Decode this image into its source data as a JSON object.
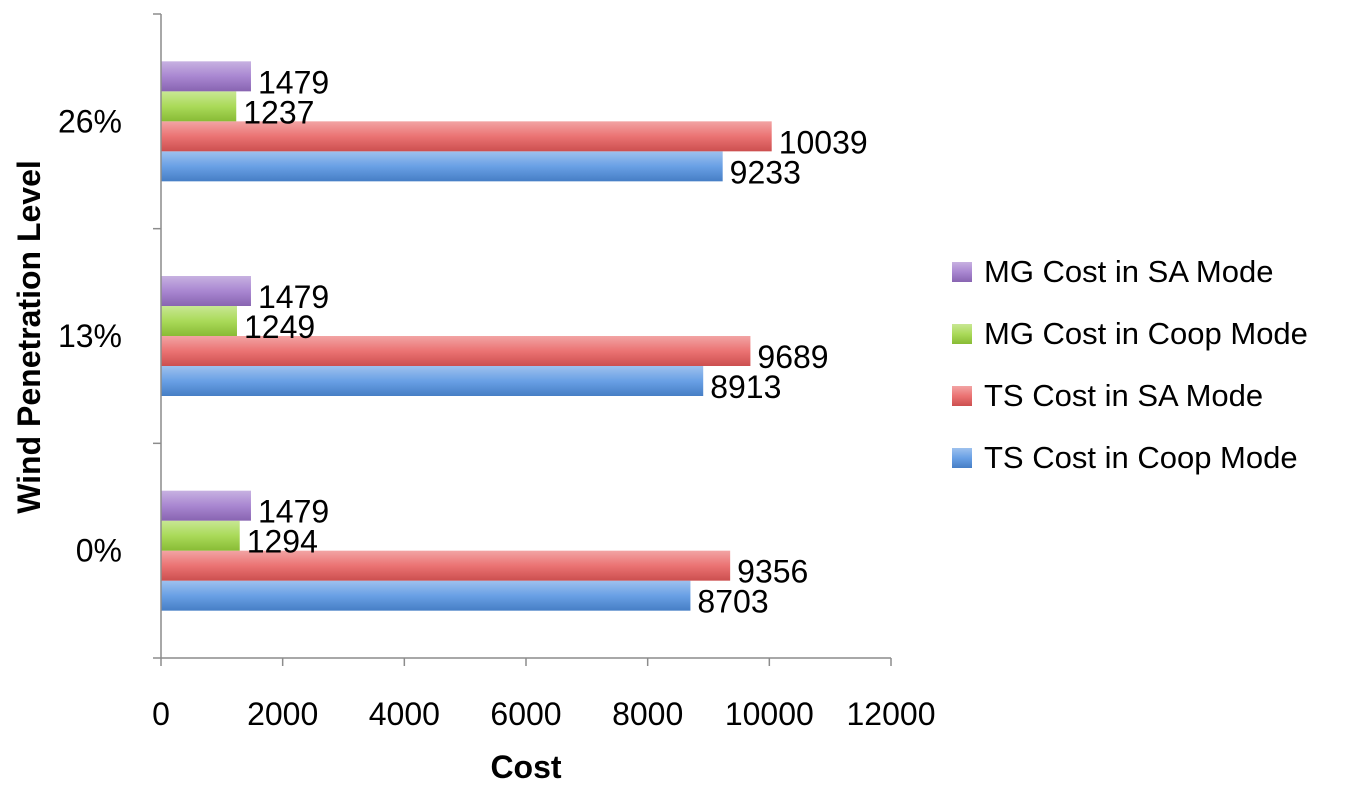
{
  "chart_data": {
    "type": "bar",
    "orientation": "horizontal",
    "xlabel": "Cost",
    "ylabel": "Wind Penetration Level",
    "xlim": [
      0,
      12000
    ],
    "xticks": [
      0,
      2000,
      4000,
      6000,
      8000,
      10000,
      12000
    ],
    "categories": [
      "0%",
      "13%",
      "26%"
    ],
    "series": [
      {
        "name": "TS Cost in Coop Mode",
        "values": [
          8703,
          8913,
          9233
        ],
        "color": "#4f8fe0"
      },
      {
        "name": "TS Cost in SA Mode",
        "values": [
          9356,
          9689,
          10039
        ],
        "color": "#e85a5a"
      },
      {
        "name": "MG Cost in Coop Mode",
        "values": [
          1294,
          1249,
          1237
        ],
        "color": "#9bd43c"
      },
      {
        "name": "MG Cost in SA Mode",
        "values": [
          1479,
          1479,
          1479
        ],
        "color": "#9a72c9"
      }
    ],
    "legend_position": "right",
    "grid": false
  }
}
